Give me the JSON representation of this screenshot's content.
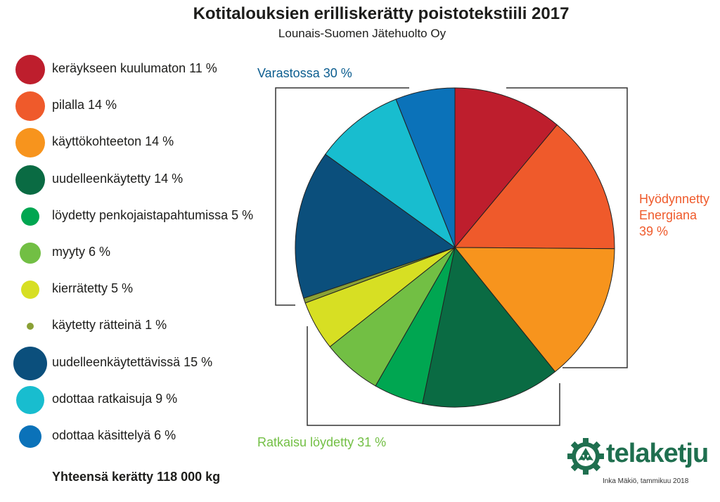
{
  "chart_data": {
    "type": "pie",
    "title": "Kotitalouksien erilliskerätty poistotekstiili 2017",
    "subtitle": "Lounais-Suomen Jätehuolto Oy",
    "slices": [
      {
        "label": "keräykseen kuulumaton 11 %",
        "value": 11,
        "color": "#be1e2d"
      },
      {
        "label": "pilalla 14 %",
        "value": 14,
        "color": "#ef5a2b"
      },
      {
        "label": "käyttökohteeton 14 %",
        "value": 14,
        "color": "#f7941d"
      },
      {
        "label": "uudelleenkäytetty 14 %",
        "value": 14,
        "color": "#0a6b43"
      },
      {
        "label": "löydetty penkojaistapahtumissa 5 %",
        "value": 5,
        "color": "#00a651"
      },
      {
        "label": "myyty 6 %",
        "value": 6,
        "color": "#72bf44"
      },
      {
        "label": "kierrätetty 5 %",
        "value": 5,
        "color": "#d7df23"
      },
      {
        "label": "käytetty rätteinä 1 %",
        "value": 0.5,
        "color": "#8aa035"
      },
      {
        "label": "uudelleenkäytettävissä 15 %",
        "value": 15,
        "color": "#0b4f7c"
      },
      {
        "label": "odottaa ratkaisuja 9 %",
        "value": 9,
        "color": "#18bdcf"
      },
      {
        "label": "odottaa käsittelyä 6 %",
        "value": 6,
        "color": "#0b72b9"
      }
    ],
    "groups": [
      {
        "label": "Hyödynnetty\nEnergiana\n39 %",
        "color": "#ef5a2b"
      },
      {
        "label": "Ratkaisu löydetty 31 %",
        "color": "#72bf44"
      },
      {
        "label": "Varastossa 30 %",
        "color": "#0b5d8f"
      }
    ],
    "total": "Yhteensä kerätty 118 000 kg"
  },
  "footer": {
    "credit": "Inka Mäkiö, tammikuu 2018",
    "logo_text": "telaketju",
    "logo_icon": "recycle-gear-icon"
  }
}
